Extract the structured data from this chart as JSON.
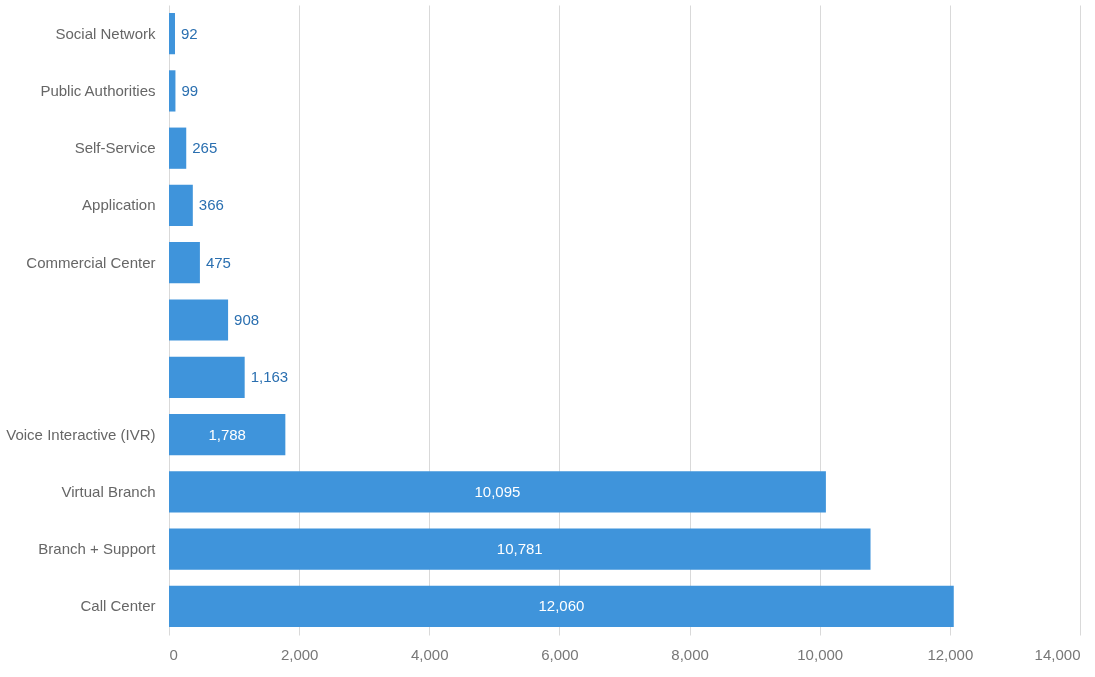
{
  "chart_data": {
    "type": "bar",
    "orientation": "horizontal",
    "categories": [
      "Social Network",
      "Public Authorities",
      "Self-Service",
      "Application",
      "Commercial Center",
      null,
      null,
      "Voice Interactive (IVR)",
      "Virtual Branch",
      "Branch + Support",
      "Call Center"
    ],
    "values": [
      92,
      99,
      265,
      366,
      475,
      908,
      1163,
      1788,
      10095,
      10781,
      12060
    ],
    "value_labels": [
      "92",
      "99",
      "265",
      "366",
      "475",
      "908",
      "1,163",
      "1,788",
      "10,095",
      "10,781",
      "12,060"
    ],
    "color": "#3f94db",
    "xlim": [
      0,
      14000
    ],
    "xticks": [
      0,
      {
        "value": 2000,
        "label": "2,000"
      },
      {
        "value": 4000,
        "label": "4,000"
      },
      {
        "value": 6000,
        "label": "6,000"
      },
      {
        "value": 8000,
        "label": "8,000"
      },
      {
        "value": 10000,
        "label": "10,000"
      },
      {
        "value": 12000,
        "label": "12,000"
      },
      {
        "value": 14000,
        "label": "14,000"
      }
    ],
    "grid": "x"
  }
}
